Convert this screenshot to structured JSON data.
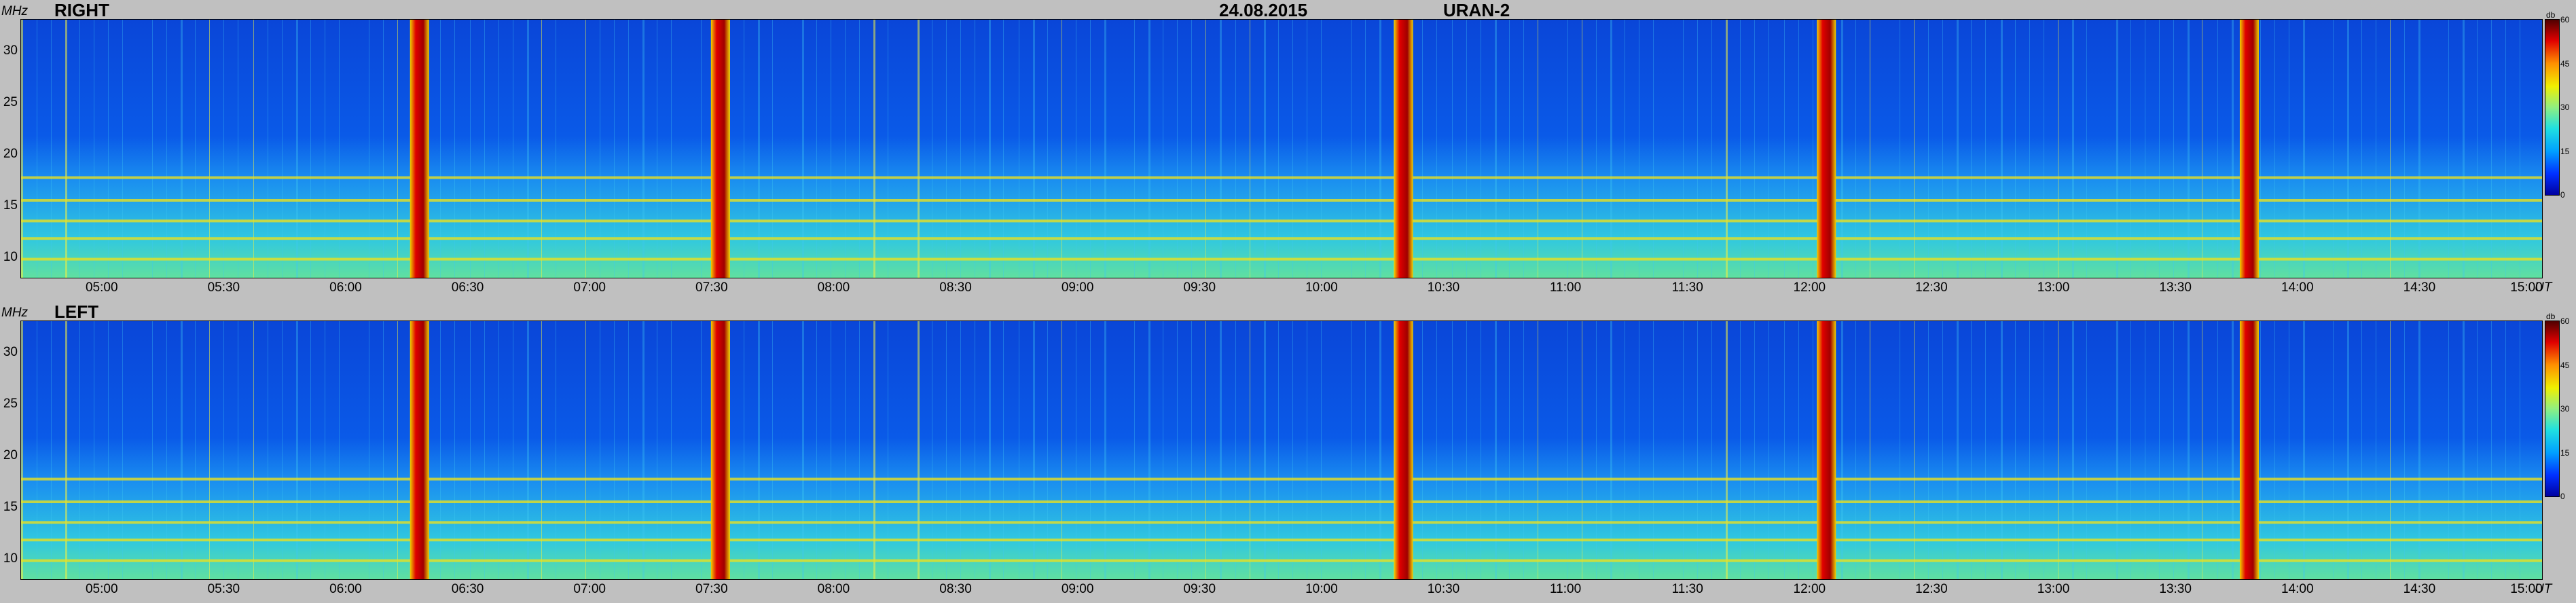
{
  "header": {
    "date": "24.08.2015",
    "instrument": "URAN-2"
  },
  "chart_data": [
    {
      "type": "heatmap",
      "title": "RIGHT",
      "ylabel": "MHz",
      "xlabel": "UT",
      "ylim": [
        8,
        33
      ],
      "xlim": [
        "04:40",
        "15:00"
      ],
      "y_ticks": [
        "30",
        "25",
        "20",
        "15",
        "10"
      ],
      "x_ticks": [
        "05:00",
        "05:30",
        "06:00",
        "06:30",
        "07:00",
        "07:30",
        "08:00",
        "08:30",
        "09:00",
        "09:30",
        "10:00",
        "10:30",
        "11:00",
        "11:30",
        "12:00",
        "12:30",
        "13:00",
        "13:30",
        "14:00",
        "14:30",
        "15:00"
      ],
      "colorbar": {
        "unit": "db",
        "ticks": [
          "60",
          "45",
          "30",
          "15",
          "0"
        ],
        "range": [
          0,
          60
        ]
      },
      "bursts_ut": [
        "06:18",
        "07:32",
        "10:20",
        "12:04",
        "13:48"
      ],
      "bands_mhz": [
        17.7,
        15.5,
        13.5,
        11.8,
        9.8
      ]
    },
    {
      "type": "heatmap",
      "title": "LEFT",
      "ylabel": "MHz",
      "xlabel": "UT",
      "ylim": [
        8,
        33
      ],
      "xlim": [
        "04:40",
        "15:00"
      ],
      "y_ticks": [
        "30",
        "25",
        "20",
        "15",
        "10"
      ],
      "x_ticks": [
        "05:00",
        "05:30",
        "06:00",
        "06:30",
        "07:00",
        "07:30",
        "08:00",
        "08:30",
        "09:00",
        "09:30",
        "10:00",
        "10:30",
        "11:00",
        "11:30",
        "12:00",
        "12:30",
        "13:00",
        "13:30",
        "14:00",
        "14:30",
        "15:00"
      ],
      "colorbar": {
        "unit": "db",
        "ticks": [
          "60",
          "45",
          "30",
          "15",
          "0"
        ],
        "range": [
          0,
          60
        ]
      },
      "bursts_ut": [
        "06:18",
        "07:32",
        "10:20",
        "12:04",
        "13:48"
      ],
      "bands_mhz": [
        17.7,
        15.5,
        13.5,
        11.8,
        9.8
      ]
    }
  ],
  "colors": {
    "background": "#0a4ee0",
    "burst": "#c00000",
    "band": "#e8e020",
    "frame": "#c0c0c0"
  }
}
